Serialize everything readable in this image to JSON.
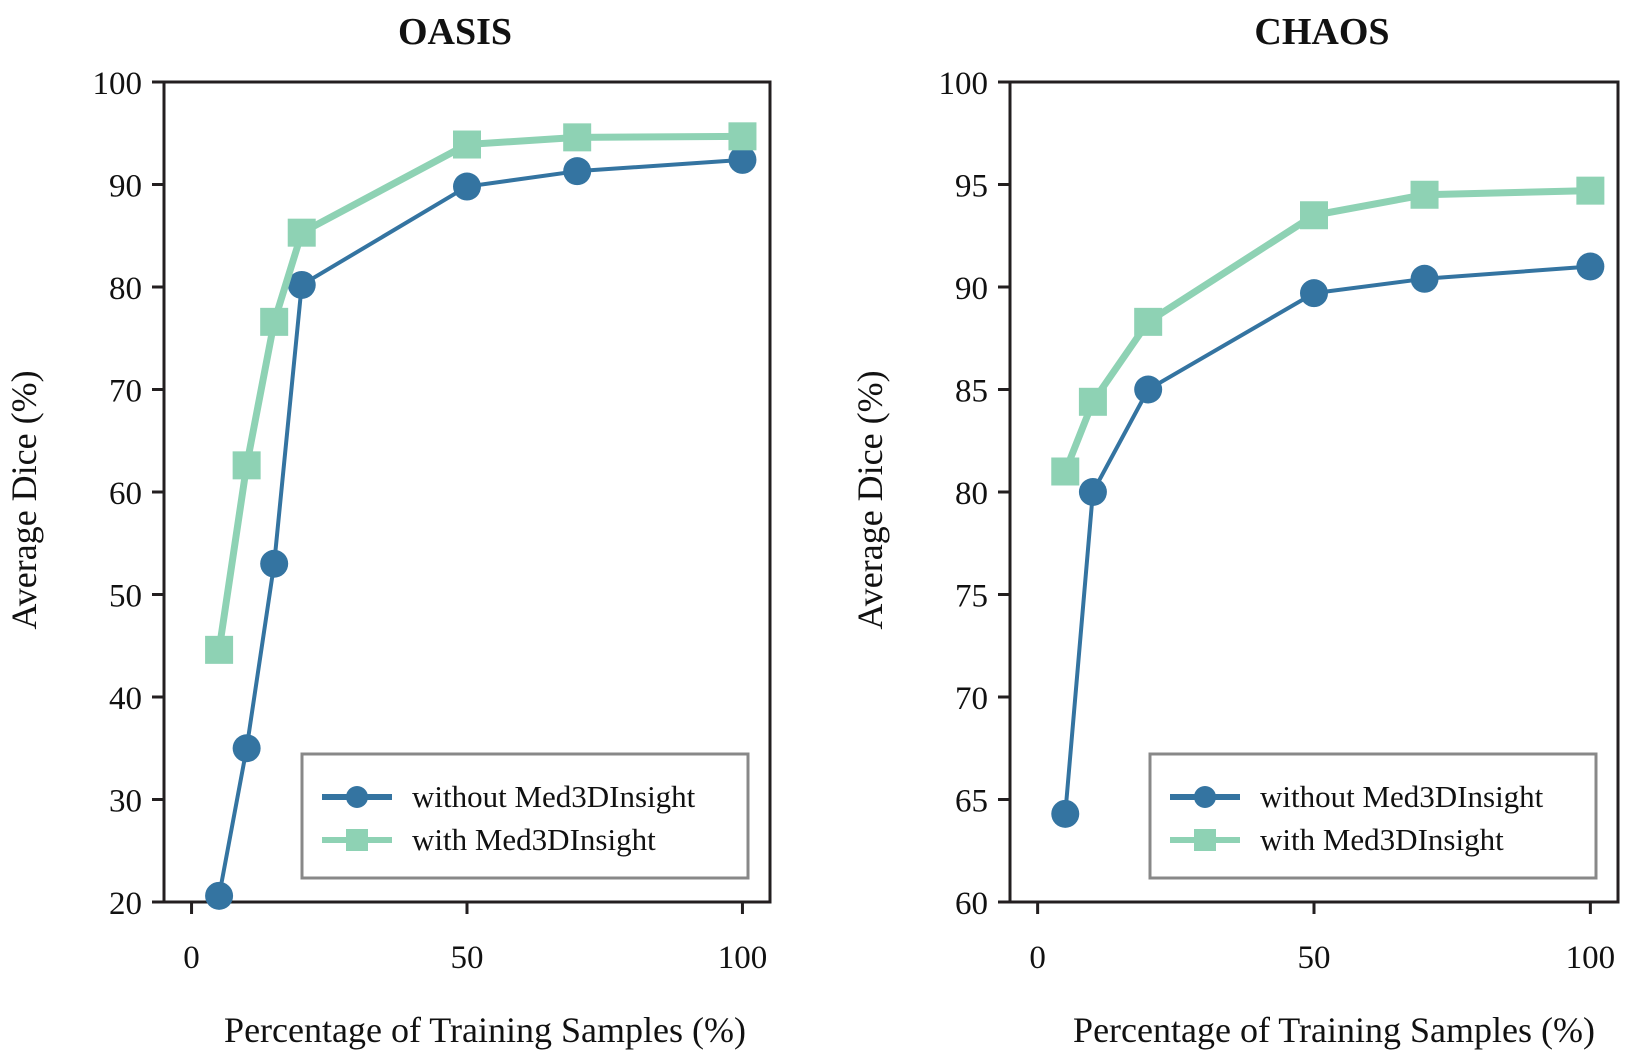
{
  "colors": {
    "without": "#3474a1",
    "with": "#8ed2b4",
    "axis": "#231f20",
    "legend_border": "#888888"
  },
  "chart_data": [
    {
      "type": "line",
      "title": "OASIS",
      "xlabel": "Percentage of Training Samples (%)",
      "ylabel": "Average Dice (%)",
      "xlim": [
        -5,
        105
      ],
      "ylim": [
        20,
        100
      ],
      "xticks": [
        0,
        50,
        100
      ],
      "yticks": [
        20,
        30,
        40,
        50,
        60,
        70,
        80,
        90,
        100
      ],
      "grid": false,
      "legend_position": "lower-right",
      "series": [
        {
          "name": "without Med3DInsight",
          "marker": "circle",
          "color_key": "without",
          "x": [
            5,
            10,
            15,
            20,
            50,
            70,
            100
          ],
          "y": [
            20.6,
            35.0,
            53.0,
            80.2,
            89.8,
            91.3,
            92.4
          ]
        },
        {
          "name": "with Med3DInsight",
          "marker": "square",
          "color_key": "with",
          "x": [
            5,
            10,
            15,
            20,
            50,
            70,
            100
          ],
          "y": [
            44.6,
            62.6,
            76.6,
            85.3,
            93.9,
            94.6,
            94.7
          ]
        }
      ]
    },
    {
      "type": "line",
      "title": "CHAOS",
      "xlabel": "Percentage of Training Samples (%)",
      "ylabel": "Average Dice (%)",
      "xlim": [
        -5,
        105
      ],
      "ylim": [
        60,
        100
      ],
      "xticks": [
        0,
        50,
        100
      ],
      "yticks": [
        60,
        65,
        70,
        75,
        80,
        85,
        90,
        95,
        100
      ],
      "grid": false,
      "legend_position": "lower-right",
      "series": [
        {
          "name": "without Med3DInsight",
          "marker": "circle",
          "color_key": "without",
          "x": [
            5,
            10,
            20,
            50,
            70,
            100
          ],
          "y": [
            64.3,
            80.0,
            85.0,
            89.7,
            90.4,
            91.0
          ]
        },
        {
          "name": "with Med3DInsight",
          "marker": "square",
          "color_key": "with",
          "x": [
            5,
            10,
            20,
            50,
            70,
            100
          ],
          "y": [
            81.0,
            84.4,
            88.3,
            93.5,
            94.5,
            94.7
          ]
        }
      ]
    }
  ]
}
